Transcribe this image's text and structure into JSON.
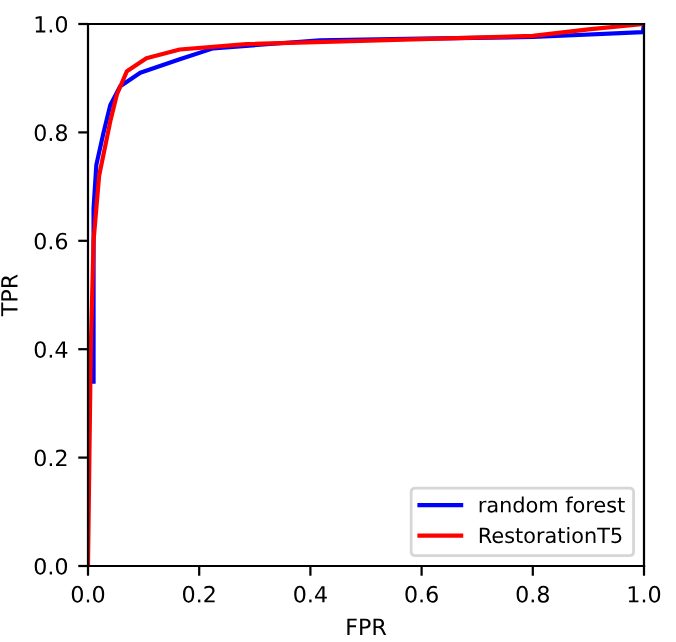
{
  "chart_data": {
    "type": "line",
    "xlabel": "FPR",
    "ylabel": "TPR",
    "xlim": [
      0,
      1
    ],
    "ylim": [
      0,
      1
    ],
    "xticks": [
      {
        "value": 0,
        "label": "0.0"
      },
      {
        "value": 0.2,
        "label": "0.2"
      },
      {
        "value": 0.4,
        "label": "0.4"
      },
      {
        "value": 0.6,
        "label": "0.6"
      },
      {
        "value": 0.8,
        "label": "0.8"
      },
      {
        "value": 1,
        "label": "1.0"
      }
    ],
    "yticks": [
      {
        "value": 0,
        "label": "0.0"
      },
      {
        "value": 0.2,
        "label": "0.2"
      },
      {
        "value": 0.4,
        "label": "0.4"
      },
      {
        "value": 0.6,
        "label": "0.6"
      },
      {
        "value": 0.8,
        "label": "0.8"
      },
      {
        "value": 1,
        "label": "1.0"
      }
    ],
    "grid": false,
    "legend": "bottom right",
    "series": [
      {
        "name": "random forest",
        "color": "#0000ff",
        "x": [
          0.01,
          0.01,
          0.015,
          0.028,
          0.04,
          0.058,
          0.094,
          0.165,
          0.225,
          0.417,
          0.6,
          0.8,
          0.998,
          1.0
        ],
        "values": [
          0.34,
          0.66,
          0.74,
          0.8,
          0.85,
          0.885,
          0.91,
          0.935,
          0.955,
          0.97,
          0.973,
          0.976,
          0.985,
          1.0
        ]
      },
      {
        "name": "RestorationT5",
        "color": "#ff0000",
        "x": [
          0.0,
          0.005,
          0.01,
          0.02,
          0.04,
          0.052,
          0.07,
          0.105,
          0.165,
          0.285,
          0.6,
          0.8,
          0.9,
          1.0
        ],
        "values": [
          0.0,
          0.4,
          0.6,
          0.72,
          0.82,
          0.87,
          0.913,
          0.937,
          0.953,
          0.963,
          0.972,
          0.978,
          0.99,
          1.0
        ]
      }
    ]
  }
}
